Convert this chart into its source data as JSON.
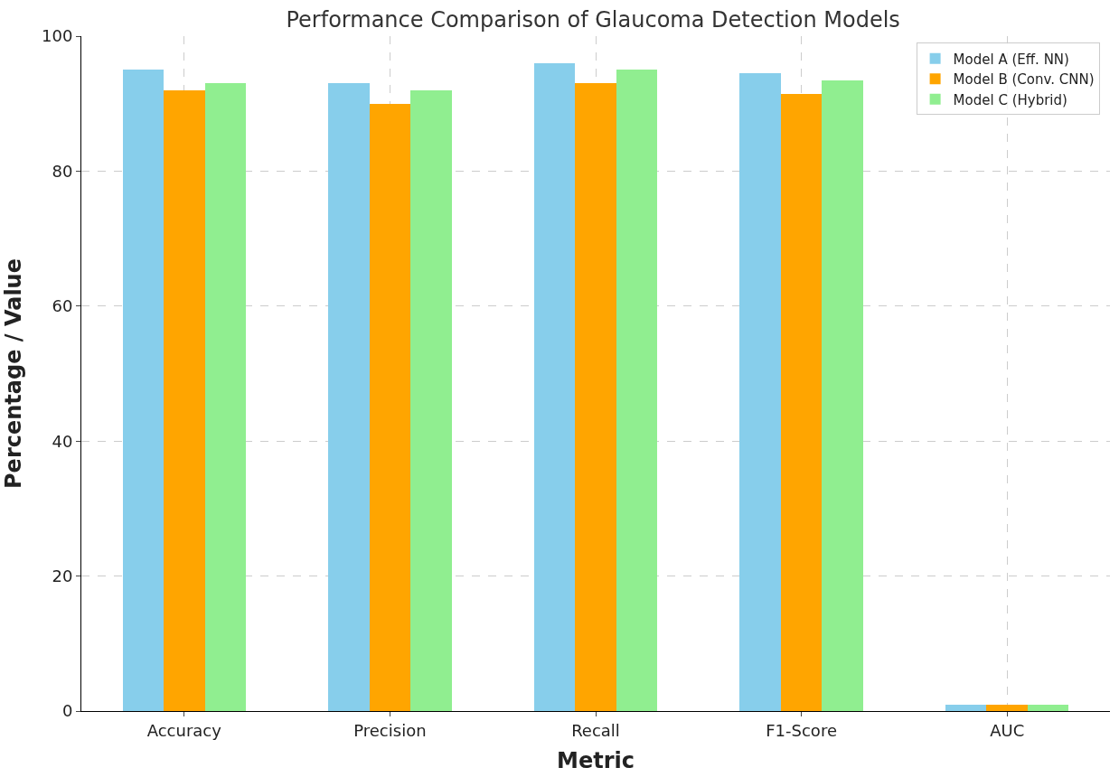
{
  "chart_data": {
    "type": "bar",
    "title": "Performance Comparison of Glaucoma Detection Models",
    "xlabel": "Metric",
    "ylabel": "Percentage / Value",
    "categories": [
      "Accuracy",
      "Precision",
      "Recall",
      "F1-Score",
      "AUC"
    ],
    "series": [
      {
        "name": "Model A (Eff. NN)",
        "color": "#87ceeb",
        "values": [
          95,
          93,
          96,
          94.5,
          1
        ]
      },
      {
        "name": "Model B (Conv. CNN)",
        "color": "#ffa500",
        "values": [
          92,
          90,
          93,
          91.5,
          1
        ]
      },
      {
        "name": "Model C (Hybrid)",
        "color": "#90ee90",
        "values": [
          93,
          92,
          95,
          93.5,
          1
        ]
      }
    ],
    "ylim": [
      0,
      100
    ],
    "yticks": [
      0,
      20,
      40,
      60,
      80,
      100
    ],
    "grid": true,
    "legend": "top right"
  }
}
